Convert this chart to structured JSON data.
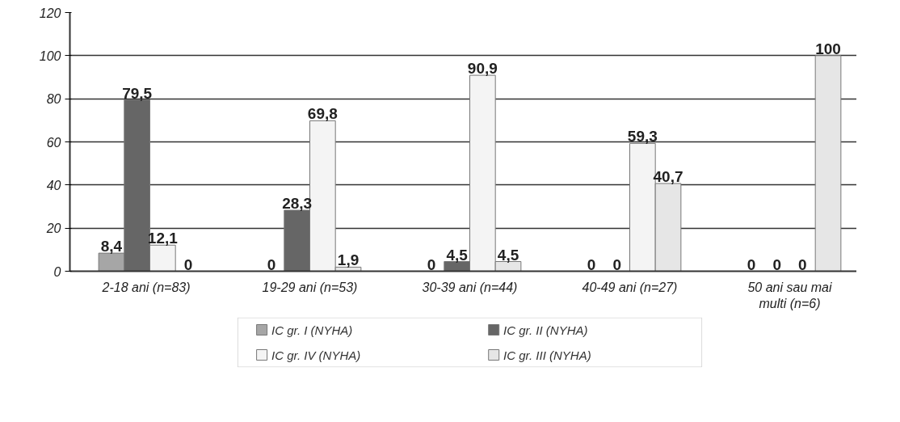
{
  "chart_data": {
    "type": "bar",
    "categories": [
      "2-18 ani   (n=83)",
      "19-29 ani (n=53)",
      "30-39 ani (n=44)",
      "40-49 ani (n=27)",
      "50 ani sau mai\nmulti (n=6)"
    ],
    "series": [
      {
        "name": "IC gr. I (NYHA)",
        "color": "#a6a6a6",
        "values": [
          8.4,
          0,
          0,
          0,
          0
        ],
        "value_labels": [
          "8,4",
          "0",
          "0",
          "0",
          "0"
        ]
      },
      {
        "name": "IC gr. II (NYHA)",
        "color": "#666666",
        "values": [
          79.5,
          28.3,
          4.5,
          0,
          0
        ],
        "value_labels": [
          "79,5",
          "28,3",
          "4,5",
          "0",
          "0"
        ]
      },
      {
        "name": "IC gr. IV (NYHA)",
        "color": "#f4f4f4",
        "values": [
          12.1,
          69.8,
          90.9,
          59.3,
          0
        ],
        "value_labels": [
          "12,1",
          "69,8",
          "90,9",
          "59,3",
          "0"
        ]
      },
      {
        "name": "IC gr. III (NYHA)",
        "color": "#e6e6e6",
        "values": [
          0,
          1.9,
          4.5,
          40.7,
          100
        ],
        "value_labels": [
          "0",
          "1,9",
          "4,5",
          "40,7",
          "100"
        ]
      }
    ],
    "ylim": [
      0,
      120
    ],
    "yticks": [
      0,
      20,
      40,
      60,
      80,
      100,
      120
    ],
    "grid": "y",
    "legend": "bottom"
  }
}
